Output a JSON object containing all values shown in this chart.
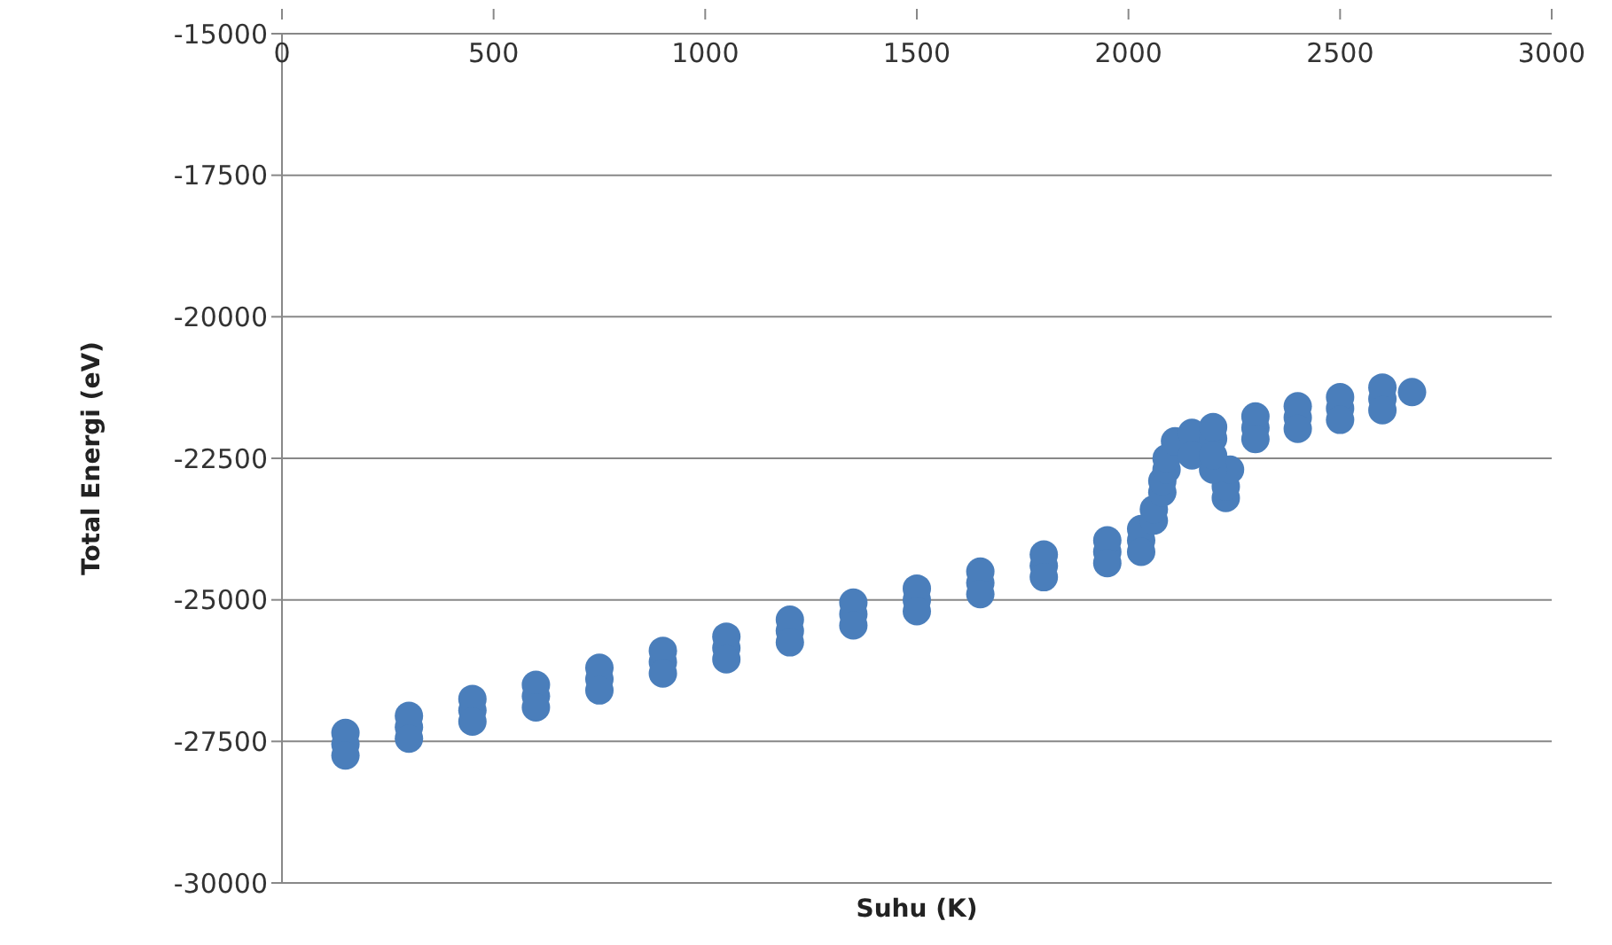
{
  "chart_data": {
    "type": "scatter",
    "xlabel": "Suhu (K)",
    "ylabel": "Total Energi (eV)",
    "xlim": [
      0,
      3000
    ],
    "xticks": [
      0,
      500,
      1000,
      1500,
      2000,
      2500,
      3000
    ],
    "ylim": [
      -30000,
      -15000
    ],
    "yticks": [
      -30000,
      -27500,
      -25000,
      -22500,
      -20000,
      -17500,
      -15000
    ],
    "grid": "y",
    "marker": "circle",
    "series": [
      {
        "color": "#4a7ebb",
        "x": [
          150,
          150,
          150,
          300,
          300,
          300,
          450,
          450,
          450,
          600,
          600,
          600,
          750,
          750,
          750,
          900,
          900,
          900,
          1050,
          1050,
          1050,
          1200,
          1200,
          1200,
          1350,
          1350,
          1350,
          1500,
          1500,
          1500,
          1650,
          1650,
          1650,
          1800,
          1800,
          1800,
          1950,
          1950,
          1950,
          2030,
          2030,
          2030,
          2060,
          2060,
          2080,
          2080,
          2090,
          2090,
          2110,
          2150,
          2150,
          2200,
          2200,
          2230,
          2230,
          2240,
          2200,
          2200,
          2300,
          2300,
          2300,
          2400,
          2400,
          2400,
          2500,
          2500,
          2500,
          2600,
          2600,
          2600,
          2670
        ],
        "values": [
          -27550,
          -27350,
          -27750,
          -27250,
          -27050,
          -27450,
          -26950,
          -26750,
          -27150,
          -26700,
          -26500,
          -26900,
          -26400,
          -26200,
          -26600,
          -26100,
          -25900,
          -26300,
          -25850,
          -25650,
          -26050,
          -25550,
          -25350,
          -25750,
          -25250,
          -25050,
          -25450,
          -25000,
          -24800,
          -25200,
          -24700,
          -24500,
          -24900,
          -24400,
          -24200,
          -24600,
          -24150,
          -23950,
          -24350,
          -23950,
          -23750,
          -24150,
          -23600,
          -23400,
          -23100,
          -22900,
          -22700,
          -22500,
          -22200,
          -22050,
          -22450,
          -22150,
          -21950,
          -23200,
          -23000,
          -22700,
          -22700,
          -22450,
          -21960,
          -21760,
          -22160,
          -21780,
          -21580,
          -21980,
          -21620,
          -21420,
          -21820,
          -21450,
          -21250,
          -21650,
          -21330
        ]
      }
    ]
  }
}
